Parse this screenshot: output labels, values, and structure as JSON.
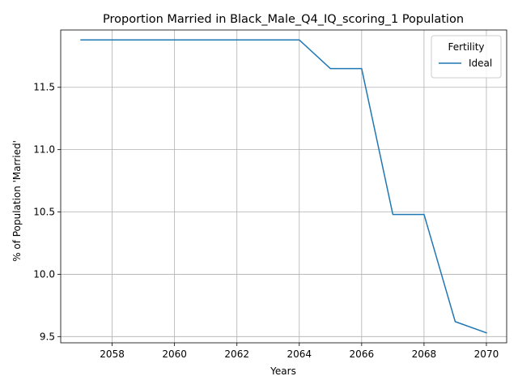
{
  "chart_data": {
    "type": "line",
    "title": "Proportion Married in Black_Male_Q4_IQ_scoring_1 Population",
    "xlabel": "Years",
    "ylabel": "% of Population 'Married'",
    "x": [
      2057,
      2058,
      2059,
      2060,
      2061,
      2062,
      2063,
      2064,
      2065,
      2066,
      2067,
      2068,
      2069,
      2070
    ],
    "series": [
      {
        "name": "Ideal",
        "color": "#1f77b4",
        "values": [
          11.88,
          11.88,
          11.88,
          11.88,
          11.88,
          11.88,
          11.88,
          11.88,
          11.65,
          11.65,
          10.48,
          10.48,
          9.62,
          9.53
        ]
      }
    ],
    "xlim": [
      2056.35,
      2070.65
    ],
    "ylim": [
      9.45,
      11.96
    ],
    "xticks": [
      2058,
      2060,
      2062,
      2064,
      2066,
      2068,
      2070
    ],
    "yticks": [
      9.5,
      10.0,
      10.5,
      11.0,
      11.5
    ],
    "ytick_labels": [
      "9.5",
      "10.0",
      "10.5",
      "11.0",
      "11.5"
    ],
    "grid": true,
    "legend": {
      "title": "Fertility",
      "placement": "top-right"
    }
  }
}
